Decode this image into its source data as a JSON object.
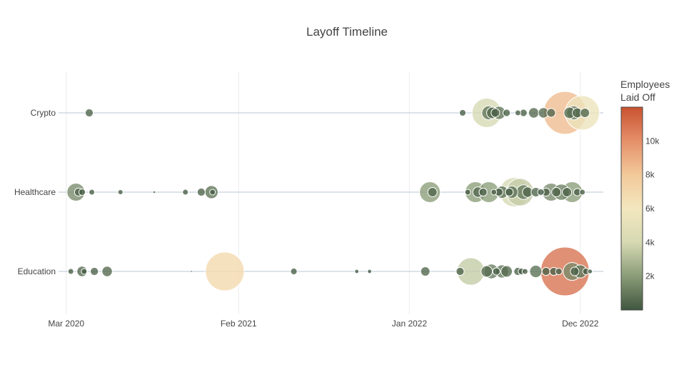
{
  "chart_data": {
    "type": "scatter",
    "title": "Layoff Timeline",
    "xlabel": "",
    "ylabel": "",
    "x_range": [
      "2020-02-15",
      "2023-01-15"
    ],
    "x_ticks": [
      {
        "date": "2020-03-01",
        "label": "Mar 2020"
      },
      {
        "date": "2021-02-01",
        "label": "Feb 2021"
      },
      {
        "date": "2022-01-01",
        "label": "Jan 2022"
      },
      {
        "date": "2022-12-01",
        "label": "Dec 2022"
      }
    ],
    "categories": [
      "Crypto",
      "Healthcare",
      "Education"
    ],
    "grid": true,
    "colorbar": {
      "title_lines": [
        "Employees",
        "Laid Off"
      ],
      "min": 0,
      "max": 12000,
      "ticks": [
        2000,
        4000,
        6000,
        8000,
        10000
      ],
      "tick_labels": [
        "2k",
        "4k",
        "6k",
        "8k",
        "10k"
      ],
      "colors": [
        "#40573f",
        "#8a9c78",
        "#d6d9b2",
        "#f3e7bf",
        "#f2c99a",
        "#e5906a",
        "#c95230"
      ],
      "position": "right"
    },
    "series": [
      {
        "category": "Crypto",
        "points": [
          {
            "x": "2020-04-15",
            "value": 300
          },
          {
            "x": "2022-04-15",
            "value": 200
          },
          {
            "x": "2022-06-01",
            "value": 4000
          },
          {
            "x": "2022-06-05",
            "value": 900
          },
          {
            "x": "2022-06-12",
            "value": 600
          },
          {
            "x": "2022-06-18",
            "value": 350
          },
          {
            "x": "2022-06-25",
            "value": 800
          },
          {
            "x": "2022-07-10",
            "value": 250
          },
          {
            "x": "2022-08-01",
            "value": 150
          },
          {
            "x": "2022-08-12",
            "value": 250
          },
          {
            "x": "2022-09-01",
            "value": 500
          },
          {
            "x": "2022-09-20",
            "value": 500
          },
          {
            "x": "2022-10-05",
            "value": 350
          },
          {
            "x": "2022-11-01",
            "value": 8500
          },
          {
            "x": "2022-11-10",
            "value": 600
          },
          {
            "x": "2022-11-18",
            "value": 900
          },
          {
            "x": "2022-11-25",
            "value": 450
          },
          {
            "x": "2022-12-05",
            "value": 5500
          },
          {
            "x": "2022-12-10",
            "value": 400
          }
        ]
      },
      {
        "category": "Healthcare",
        "points": [
          {
            "x": "2020-03-20",
            "value": 1500
          },
          {
            "x": "2020-03-25",
            "value": 300
          },
          {
            "x": "2020-04-01",
            "value": 200
          },
          {
            "x": "2020-04-20",
            "value": 150
          },
          {
            "x": "2020-06-15",
            "value": 120
          },
          {
            "x": "2020-08-20",
            "value": 20
          },
          {
            "x": "2020-10-20",
            "value": 150
          },
          {
            "x": "2020-11-20",
            "value": 300
          },
          {
            "x": "2020-12-10",
            "value": 800
          },
          {
            "x": "2020-12-12",
            "value": 150
          },
          {
            "x": "2022-02-10",
            "value": 2000
          },
          {
            "x": "2022-02-15",
            "value": 400
          },
          {
            "x": "2022-04-25",
            "value": 150
          },
          {
            "x": "2022-05-10",
            "value": 2000
          },
          {
            "x": "2022-05-15",
            "value": 500
          },
          {
            "x": "2022-05-25",
            "value": 300
          },
          {
            "x": "2022-06-05",
            "value": 2000
          },
          {
            "x": "2022-06-15",
            "value": 150
          },
          {
            "x": "2022-06-25",
            "value": 300
          },
          {
            "x": "2022-07-01",
            "value": 700
          },
          {
            "x": "2022-07-15",
            "value": 300
          },
          {
            "x": "2022-07-20",
            "value": 700
          },
          {
            "x": "2022-07-25",
            "value": 4000
          },
          {
            "x": "2022-08-05",
            "value": 3500
          },
          {
            "x": "2022-08-12",
            "value": 1000
          },
          {
            "x": "2022-08-20",
            "value": 500
          },
          {
            "x": "2022-09-05",
            "value": 400
          },
          {
            "x": "2022-09-15",
            "value": 200
          },
          {
            "x": "2022-09-25",
            "value": 300
          },
          {
            "x": "2022-10-05",
            "value": 1500
          },
          {
            "x": "2022-10-15",
            "value": 400
          },
          {
            "x": "2022-10-25",
            "value": 1200
          },
          {
            "x": "2022-11-05",
            "value": 400
          },
          {
            "x": "2022-11-15",
            "value": 2000
          },
          {
            "x": "2022-11-25",
            "value": 250
          },
          {
            "x": "2022-12-05",
            "value": 150
          }
        ]
      },
      {
        "category": "Education",
        "points": [
          {
            "x": "2020-03-10",
            "value": 150
          },
          {
            "x": "2020-04-01",
            "value": 500
          },
          {
            "x": "2020-04-05",
            "value": 150
          },
          {
            "x": "2020-04-25",
            "value": 300
          },
          {
            "x": "2020-05-20",
            "value": 500
          },
          {
            "x": "2020-11-01",
            "value": 10
          },
          {
            "x": "2021-01-05",
            "value": 7000
          },
          {
            "x": "2021-05-20",
            "value": 200
          },
          {
            "x": "2021-09-20",
            "value": 80
          },
          {
            "x": "2021-10-15",
            "value": 80
          },
          {
            "x": "2022-02-01",
            "value": 400
          },
          {
            "x": "2022-04-10",
            "value": 300
          },
          {
            "x": "2022-05-01",
            "value": 3500
          },
          {
            "x": "2022-06-01",
            "value": 600
          },
          {
            "x": "2022-06-10",
            "value": 1000
          },
          {
            "x": "2022-06-20",
            "value": 250
          },
          {
            "x": "2022-07-01",
            "value": 800
          },
          {
            "x": "2022-07-10",
            "value": 600
          },
          {
            "x": "2022-08-01",
            "value": 300
          },
          {
            "x": "2022-08-08",
            "value": 200
          },
          {
            "x": "2022-08-15",
            "value": 150
          },
          {
            "x": "2022-09-05",
            "value": 700
          },
          {
            "x": "2022-09-25",
            "value": 300
          },
          {
            "x": "2022-10-10",
            "value": 300
          },
          {
            "x": "2022-10-20",
            "value": 200
          },
          {
            "x": "2022-11-01",
            "value": 11000
          },
          {
            "x": "2022-11-15",
            "value": 1500
          },
          {
            "x": "2022-11-20",
            "value": 350
          },
          {
            "x": "2022-12-01",
            "value": 800
          },
          {
            "x": "2022-12-12",
            "value": 200
          },
          {
            "x": "2022-12-20",
            "value": 100
          }
        ]
      }
    ]
  }
}
